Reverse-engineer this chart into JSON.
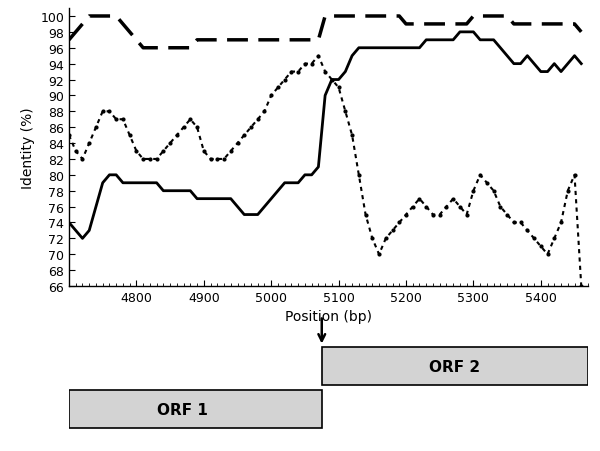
{
  "xlim": [
    4700,
    5470
  ],
  "ylim": [
    66,
    101
  ],
  "yticks": [
    66,
    68,
    70,
    72,
    74,
    76,
    78,
    80,
    82,
    84,
    86,
    88,
    90,
    92,
    94,
    96,
    98,
    100
  ],
  "xticks": [
    4800,
    4900,
    5000,
    5100,
    5200,
    5300,
    5400
  ],
  "xlabel": "Position (bp)",
  "ylabel": "Identity (%)",
  "recombination_site": 5075,
  "solid_line": {
    "x": [
      4700,
      4710,
      4720,
      4730,
      4740,
      4750,
      4760,
      4770,
      4780,
      4790,
      4800,
      4810,
      4820,
      4830,
      4840,
      4850,
      4860,
      4870,
      4880,
      4890,
      4900,
      4910,
      4920,
      4930,
      4940,
      4950,
      4960,
      4970,
      4980,
      4990,
      5000,
      5010,
      5020,
      5030,
      5040,
      5050,
      5060,
      5070,
      5080,
      5090,
      5100,
      5110,
      5120,
      5130,
      5140,
      5150,
      5160,
      5170,
      5180,
      5190,
      5200,
      5210,
      5220,
      5230,
      5240,
      5250,
      5260,
      5270,
      5280,
      5290,
      5300,
      5310,
      5320,
      5330,
      5340,
      5350,
      5360,
      5370,
      5380,
      5390,
      5400,
      5410,
      5420,
      5430,
      5440,
      5450,
      5460
    ],
    "y": [
      74,
      73,
      72,
      73,
      76,
      79,
      80,
      80,
      79,
      79,
      79,
      79,
      79,
      79,
      78,
      78,
      78,
      78,
      78,
      77,
      77,
      77,
      77,
      77,
      77,
      76,
      75,
      75,
      75,
      76,
      77,
      78,
      79,
      79,
      79,
      80,
      80,
      81,
      90,
      92,
      92,
      93,
      95,
      96,
      96,
      96,
      96,
      96,
      96,
      96,
      96,
      96,
      96,
      97,
      97,
      97,
      97,
      97,
      98,
      98,
      98,
      97,
      97,
      97,
      96,
      95,
      94,
      94,
      95,
      94,
      93,
      93,
      94,
      93,
      94,
      95,
      94
    ]
  },
  "dotted_line": {
    "x": [
      4700,
      4710,
      4720,
      4730,
      4740,
      4750,
      4760,
      4770,
      4780,
      4790,
      4800,
      4810,
      4820,
      4830,
      4840,
      4850,
      4860,
      4870,
      4880,
      4890,
      4900,
      4910,
      4920,
      4930,
      4940,
      4950,
      4960,
      4970,
      4980,
      4990,
      5000,
      5010,
      5020,
      5030,
      5040,
      5050,
      5060,
      5070,
      5080,
      5090,
      5100,
      5110,
      5120,
      5130,
      5140,
      5150,
      5160,
      5170,
      5180,
      5190,
      5200,
      5210,
      5220,
      5230,
      5240,
      5250,
      5260,
      5270,
      5280,
      5290,
      5300,
      5310,
      5320,
      5330,
      5340,
      5350,
      5360,
      5370,
      5380,
      5390,
      5400,
      5410,
      5420,
      5430,
      5440,
      5450,
      5460
    ],
    "y": [
      85,
      83,
      82,
      84,
      86,
      88,
      88,
      87,
      87,
      85,
      83,
      82,
      82,
      82,
      83,
      84,
      85,
      86,
      87,
      86,
      83,
      82,
      82,
      82,
      83,
      84,
      85,
      86,
      87,
      88,
      90,
      91,
      92,
      93,
      93,
      94,
      94,
      95,
      93,
      92,
      91,
      88,
      85,
      80,
      75,
      72,
      70,
      72,
      73,
      74,
      75,
      76,
      77,
      76,
      75,
      75,
      76,
      77,
      76,
      75,
      78,
      80,
      79,
      78,
      76,
      75,
      74,
      74,
      73,
      72,
      71,
      70,
      72,
      74,
      78,
      80,
      66
    ]
  },
  "dashed_line": {
    "x": [
      4700,
      4710,
      4720,
      4730,
      4740,
      4750,
      4760,
      4770,
      4780,
      4790,
      4800,
      4810,
      4820,
      4830,
      4840,
      4850,
      4860,
      4870,
      4880,
      4890,
      4900,
      4910,
      4920,
      4930,
      4940,
      4950,
      4960,
      4970,
      4980,
      4990,
      5000,
      5010,
      5020,
      5030,
      5040,
      5050,
      5060,
      5070,
      5080,
      5090,
      5100,
      5110,
      5120,
      5130,
      5140,
      5150,
      5160,
      5170,
      5180,
      5190,
      5200,
      5210,
      5220,
      5230,
      5240,
      5250,
      5260,
      5270,
      5280,
      5290,
      5300,
      5310,
      5320,
      5330,
      5340,
      5350,
      5360,
      5370,
      5380,
      5390,
      5400,
      5410,
      5420,
      5430,
      5440,
      5450,
      5460
    ],
    "y": [
      97,
      98,
      99,
      100,
      100,
      100,
      100,
      100,
      99,
      98,
      97,
      96,
      96,
      96,
      96,
      96,
      96,
      96,
      96,
      97,
      97,
      97,
      97,
      97,
      97,
      97,
      97,
      97,
      97,
      97,
      97,
      97,
      97,
      97,
      97,
      97,
      97,
      97,
      100,
      100,
      100,
      100,
      100,
      100,
      100,
      100,
      100,
      100,
      100,
      100,
      99,
      99,
      99,
      99,
      99,
      99,
      99,
      99,
      99,
      99,
      100,
      100,
      100,
      100,
      100,
      100,
      99,
      99,
      99,
      99,
      99,
      99,
      99,
      99,
      99,
      99,
      98
    ]
  },
  "background_color": "#ffffff"
}
